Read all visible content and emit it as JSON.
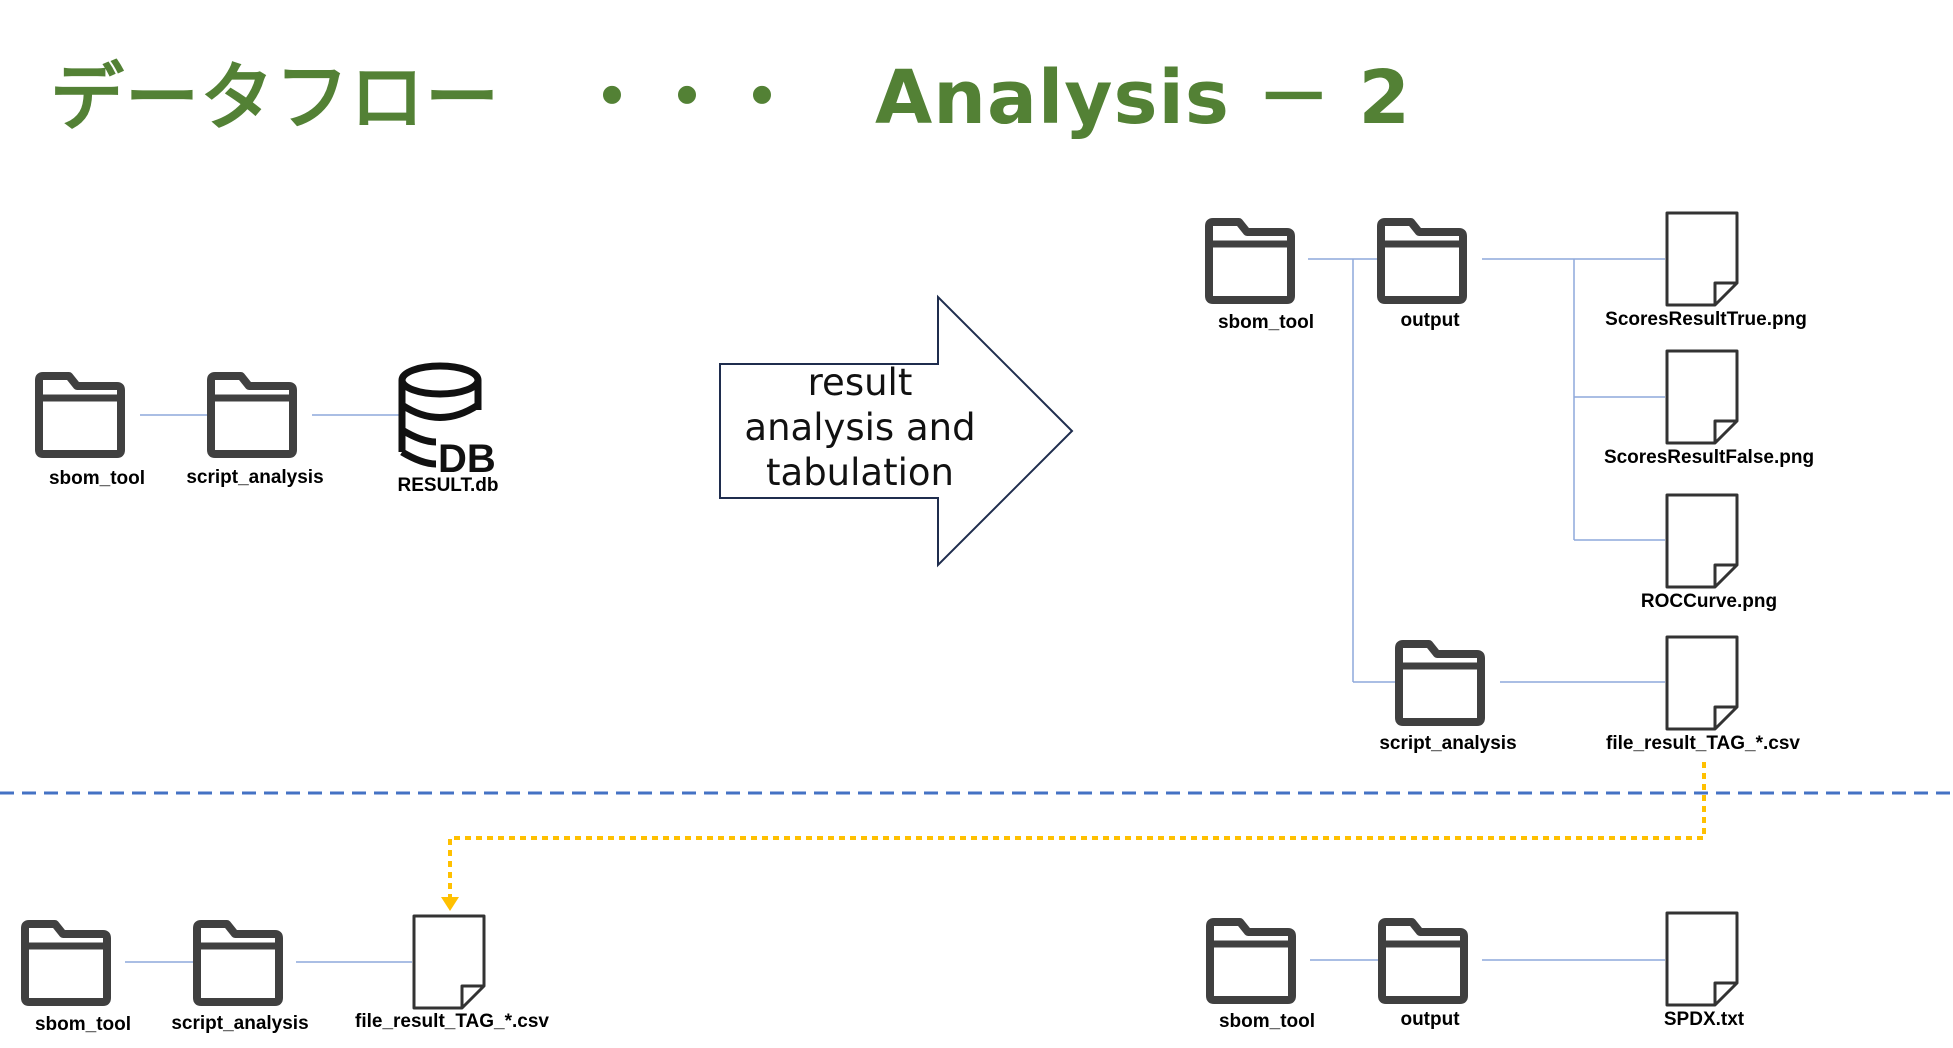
{
  "title": "データフロー　・・・　Analysis － 2",
  "arrow_label": "result\nanalysis and\ntabulation",
  "colors": {
    "title": "#538135",
    "connector": "#8EA9DB",
    "separator": "#4472C4",
    "flow_arrow": "#FFC000"
  },
  "left_top": {
    "folder1": "sbom_tool",
    "folder2": "script_analysis",
    "db": "RESULT.db",
    "db_icon_text": "DB"
  },
  "right_top": {
    "root": "sbom_tool",
    "output": "output",
    "files": [
      "ScoresResultTrue.png",
      "ScoresResultFalse.png",
      "ROCCurve.png"
    ],
    "script": "script_analysis",
    "csv": "file_result_TAG_*.csv"
  },
  "bottom_left": {
    "folder1": "sbom_tool",
    "folder2": "script_analysis",
    "file": "file_result_TAG_*.csv"
  },
  "bottom_right": {
    "folder1": "sbom_tool",
    "folder2": "output",
    "file": "SPDX.txt"
  }
}
